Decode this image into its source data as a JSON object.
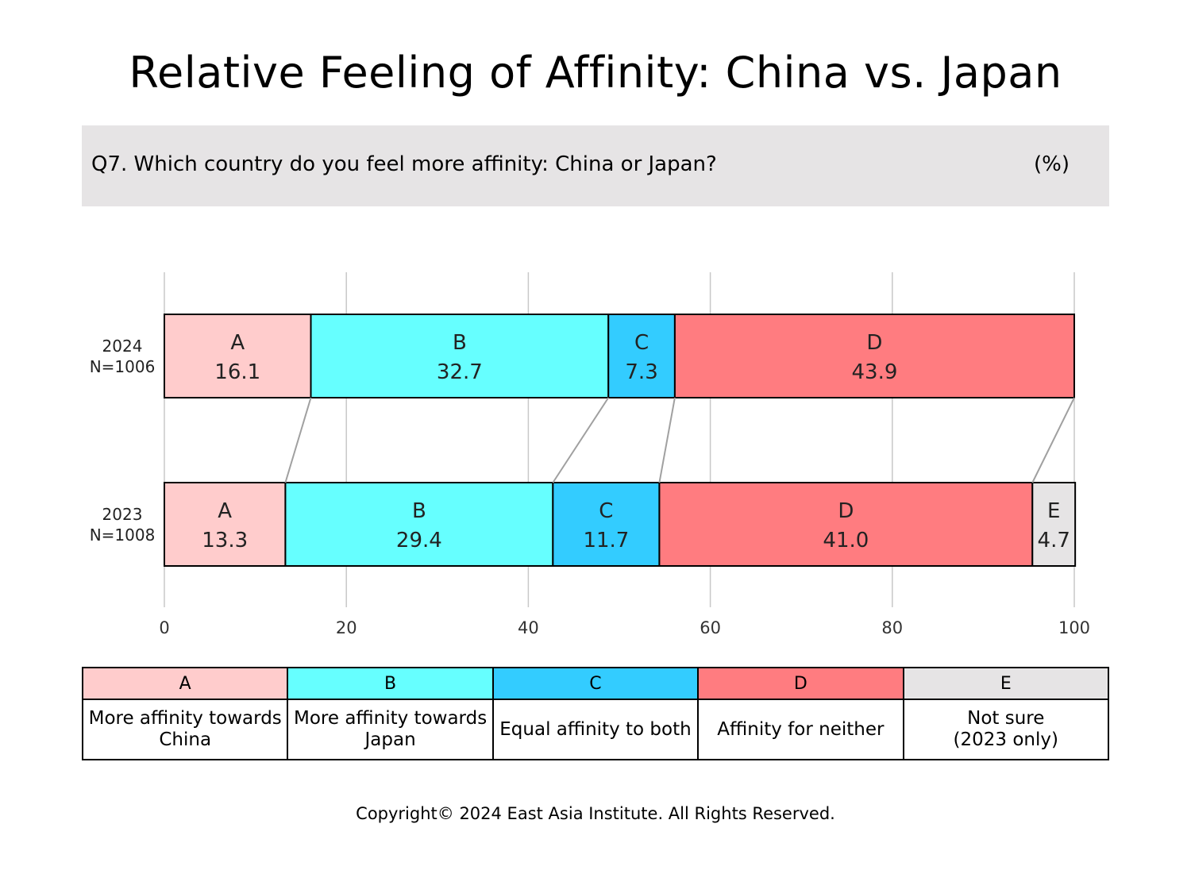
{
  "title": "Relative Feeling of Affinity: China vs. Japan",
  "question": "Q7. Which country do you feel more affinity: China or Japan?",
  "unit": "(%)",
  "footer": "Copyright© 2024 East Asia Institute. All Rights Reserved.",
  "legend": [
    {
      "code": "A",
      "label": "More affinity towards\nChina",
      "color": "#ffcccc"
    },
    {
      "code": "B",
      "label": "More affinity towards\nJapan",
      "color": "#66ffff"
    },
    {
      "code": "C",
      "label": "Equal affinity to both",
      "color": "#33ccff"
    },
    {
      "code": "D",
      "label": "Affinity for neither",
      "color": "#ff7c80"
    },
    {
      "code": "E",
      "label": "Not sure\n(2023 only)",
      "color": "#e6e4e5"
    }
  ],
  "chart_data": {
    "type": "bar",
    "orientation": "horizontal",
    "stacked": true,
    "xlim": [
      0,
      100
    ],
    "xticks": [
      0,
      20,
      40,
      60,
      80,
      100
    ],
    "grid": true,
    "rows": [
      {
        "year": "2024",
        "n": "N=1006",
        "segments": [
          {
            "code": "A",
            "value": 16.1,
            "label": "16.1"
          },
          {
            "code": "B",
            "value": 32.7,
            "label": "32.7"
          },
          {
            "code": "C",
            "value": 7.3,
            "label": "7.3"
          },
          {
            "code": "D",
            "value": 43.9,
            "label": "43.9"
          }
        ]
      },
      {
        "year": "2023",
        "n": "N=1008",
        "segments": [
          {
            "code": "A",
            "value": 13.3,
            "label": "13.3"
          },
          {
            "code": "B",
            "value": 29.4,
            "label": "29.4"
          },
          {
            "code": "C",
            "value": 11.7,
            "label": "11.7"
          },
          {
            "code": "D",
            "value": 41.0,
            "label": "41.0"
          },
          {
            "code": "E",
            "value": 4.7,
            "label": "4.7"
          }
        ]
      }
    ]
  }
}
